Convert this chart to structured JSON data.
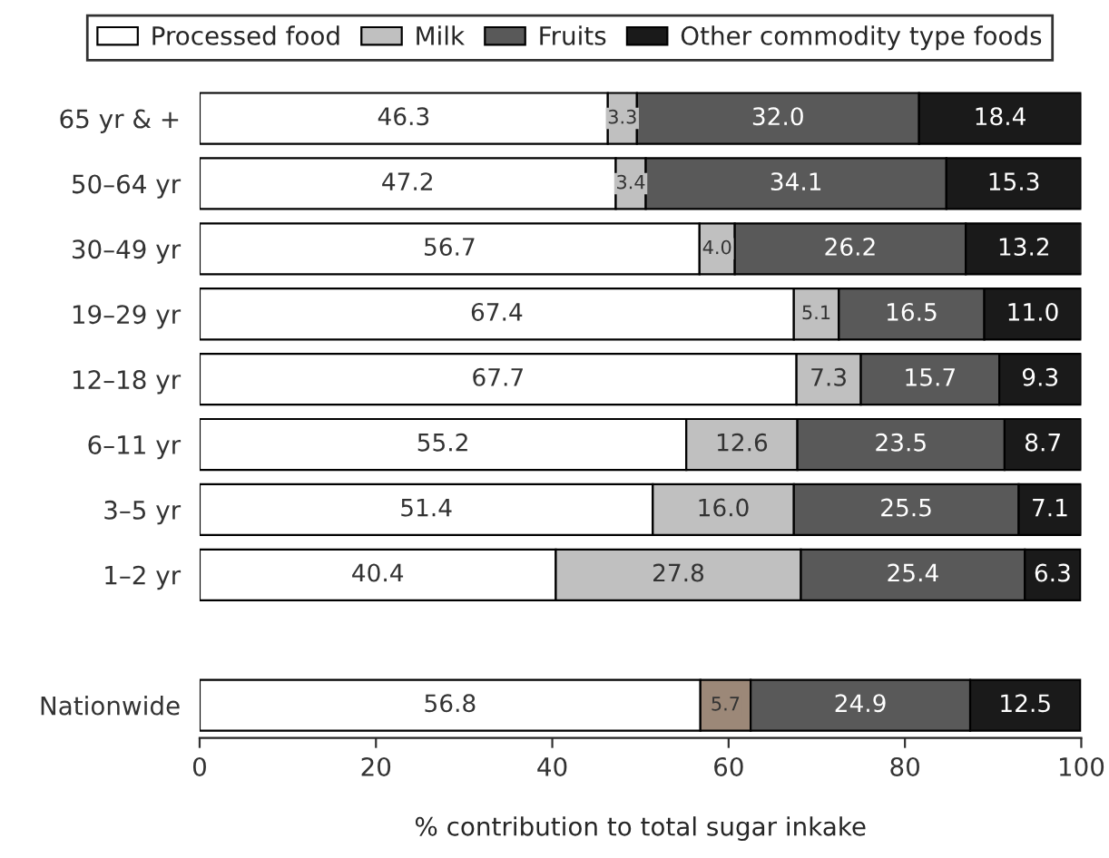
{
  "chart_data": {
    "type": "bar",
    "orientation": "horizontal",
    "stacked": true,
    "categories": [
      "65 yr & +",
      "50–64 yr",
      "30–49 yr",
      "19–29 yr",
      "12–18 yr",
      "6–11 yr",
      "3–5 yr",
      "1–2 yr",
      null,
      "Nationwide"
    ],
    "series": [
      {
        "name": "Processed food",
        "color": "#ffffff",
        "values": [
          46.3,
          47.2,
          56.7,
          67.4,
          67.7,
          55.2,
          51.4,
          40.4,
          null,
          56.8
        ],
        "value_labels": [
          "46.3",
          "47.2",
          "56.7",
          "67.4",
          "67.7",
          "55.2",
          "51.4",
          "40.4",
          null,
          "56.8"
        ]
      },
      {
        "name": "Milk",
        "color": "#c0c0c0",
        "colors": [
          "#c0c0c0",
          "#c0c0c0",
          "#c0c0c0",
          "#c0c0c0",
          "#c0c0c0",
          "#c0c0c0",
          "#c0c0c0",
          "#c0c0c0",
          "#c0c0c0",
          "#9c8878"
        ],
        "values": [
          3.3,
          3.4,
          4.0,
          5.1,
          7.3,
          12.6,
          16.0,
          27.8,
          null,
          5.7
        ],
        "value_labels": [
          "3.3",
          "3.4",
          "4.0",
          "5.1",
          "7.3",
          "12.6",
          "16.0",
          "27.8",
          null,
          "5.7"
        ]
      },
      {
        "name": "Fruits",
        "color": "#595959",
        "values": [
          32.0,
          34.1,
          26.2,
          16.5,
          15.7,
          23.5,
          25.5,
          25.4,
          null,
          24.9
        ],
        "value_labels": [
          "32.0",
          "34.1",
          "26.2",
          "16.5",
          "15.7",
          "23.5",
          "25.5",
          "25.4",
          null,
          "24.9"
        ]
      },
      {
        "name": "Other commodity type foods",
        "color": "#1a1a1a",
        "values": [
          18.4,
          15.3,
          13.2,
          11.0,
          9.3,
          8.7,
          7.1,
          6.3,
          null,
          12.5
        ],
        "value_labels": [
          "18.4",
          "15.3",
          "13.2",
          "11.0",
          "9.3",
          "8.7",
          "7.1",
          "6.3",
          null,
          "12.5"
        ]
      }
    ],
    "xlabel": "% contribution to total sugar inkake",
    "xlim": [
      0,
      100
    ],
    "xticks": [
      0,
      20,
      40,
      60,
      80,
      100
    ],
    "grid": false,
    "legend": "top"
  }
}
